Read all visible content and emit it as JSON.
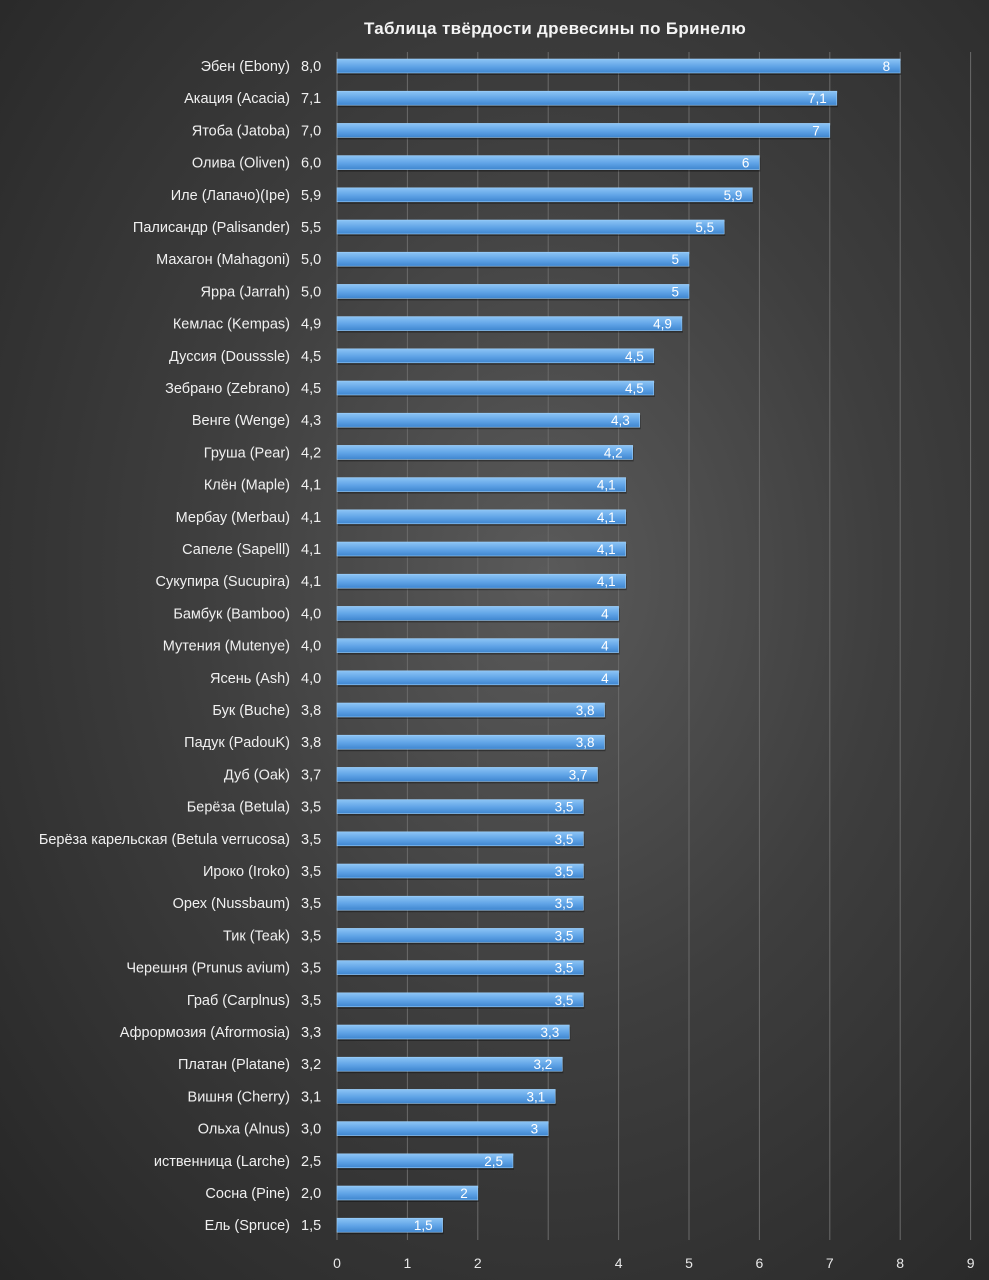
{
  "chart_data": {
    "type": "bar",
    "orientation": "horizontal",
    "title": "Таблица твёрдости древесины по Бринелю",
    "categories": [
      "Эбен (Ebony)",
      "Акация (Acacia)",
      "Ятоба (Jatoba)",
      "Олива (Oliven)",
      "Иле (Лапачо)(Ipe)",
      "Палисандр (Palisander)",
      "Махагон (Mahagoni)",
      "Ярра (Jarrah)",
      "Кемлас (Kempas)",
      "Дуссия (Dousssle)",
      "Зебрано (Zebrano)",
      "Венге (Wenge)",
      "Груша (Pear)",
      "Клён (Maple)",
      "Мербау (Merbau)",
      "Сапеле (Sapelll)",
      "Сукупира (Sucupira)",
      "Бамбук (Bamboo)",
      "Мутения (Mutenye)",
      "Ясень (Ash)",
      "Бук (Buche)",
      "Падук (PadouK)",
      "Дуб (Oak)",
      "Берёза (Betula)",
      "Берёза карельская (Betula verrucosa)",
      "Ироко (Iroko)",
      "Орех (Nussbaum)",
      "Тик (Teak)",
      "Черешня (Prunus avium)",
      "Граб (Carplnus)",
      "Афрормозия (Afrormosia)",
      "Платан (Platane)",
      "Вишня (Cherry)",
      "Ольха (Alnus)",
      "иственница (Larche)",
      "Сосна (Pine)",
      "Ель (Spruce)"
    ],
    "value_labels": [
      "8,0",
      "7,1",
      "7,0",
      "6,0",
      "5,9",
      "5,5",
      "5,0",
      "5,0",
      "4,9",
      "4,5",
      "4,5",
      "4,3",
      "4,2",
      "4,1",
      "4,1",
      "4,1",
      "4,1",
      "4,0",
      "4,0",
      "4,0",
      "3,8",
      "3,8",
      "3,7",
      "3,5",
      "3,5",
      "3,5",
      "3,5",
      "3,5",
      "3,5",
      "3,5",
      "3,3",
      "3,2",
      "3,1",
      "3,0",
      "2,5",
      "2,0",
      "1,5"
    ],
    "bar_labels": [
      "8",
      "7,1",
      "7",
      "6",
      "5,9",
      "5,5",
      "5",
      "5",
      "4,9",
      "4,5",
      "4,5",
      "4,3",
      "4,2",
      "4,1",
      "4,1",
      "4,1",
      "4,1",
      "4",
      "4",
      "4",
      "3,8",
      "3,8",
      "3,7",
      "3,5",
      "3,5",
      "3,5",
      "3,5",
      "3,5",
      "3,5",
      "3,5",
      "3,3",
      "3,2",
      "3,1",
      "3",
      "2,5",
      "2",
      "1,5"
    ],
    "values": [
      8.0,
      7.1,
      7.0,
      6.0,
      5.9,
      5.5,
      5.0,
      5.0,
      4.9,
      4.5,
      4.5,
      4.3,
      4.2,
      4.1,
      4.1,
      4.1,
      4.1,
      4.0,
      4.0,
      4.0,
      3.8,
      3.8,
      3.7,
      3.5,
      3.5,
      3.5,
      3.5,
      3.5,
      3.5,
      3.5,
      3.3,
      3.2,
      3.1,
      3.0,
      2.5,
      2.0,
      1.5
    ],
    "x_ticks": [
      "0",
      "1",
      "2",
      "",
      "4",
      "5",
      "6",
      "7",
      "8",
      "9"
    ],
    "xlim": [
      0,
      9
    ],
    "grid": true,
    "xlabel": "",
    "ylabel": "",
    "colors": {
      "bar": "#5fa3e6",
      "bar_edge": "#8cc4f5",
      "grid": "#6a6a6a"
    }
  }
}
